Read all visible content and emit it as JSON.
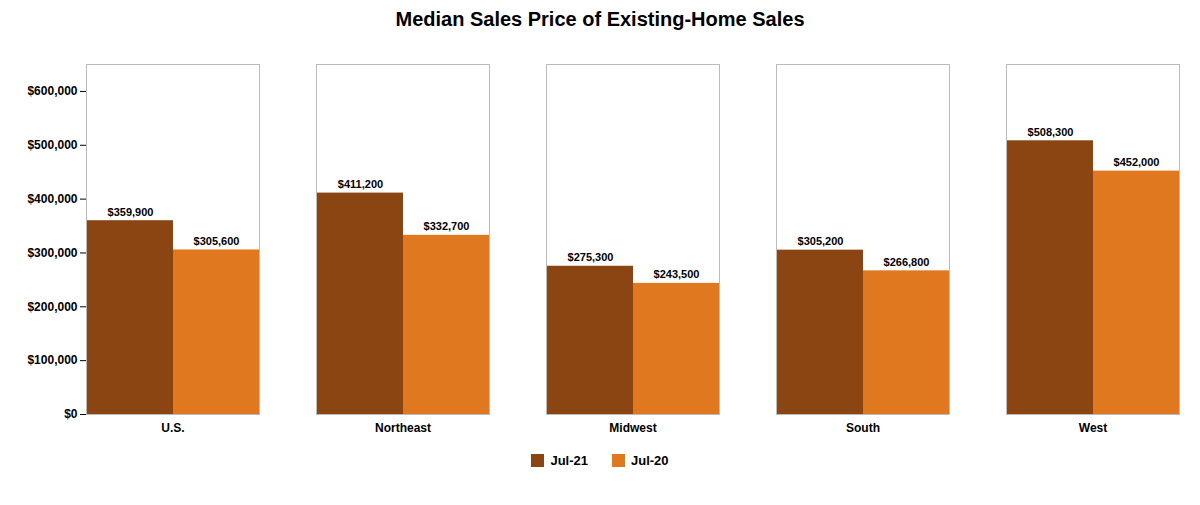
{
  "chart_data": {
    "type": "bar",
    "title": "Median Sales Price of Existing-Home Sales",
    "categories": [
      "U.S.",
      "Northeast",
      "Midwest",
      "South",
      "West"
    ],
    "series": [
      {
        "name": "Jul-21",
        "color": "#8B4513",
        "values": [
          359900,
          411200,
          275300,
          305200,
          508300
        ],
        "value_labels": [
          "$359,900",
          "$411,200",
          "$275,300",
          "$305,200",
          "$508,300"
        ]
      },
      {
        "name": "Jul-20",
        "color": "#E07820",
        "values": [
          305600,
          332700,
          243500,
          266800,
          452000
        ],
        "value_labels": [
          "$305,600",
          "$332,700",
          "$243,500",
          "$266,800",
          "$452,000"
        ]
      }
    ],
    "ylim": [
      0,
      650000
    ],
    "yticks": [
      {
        "value": 0,
        "label": "$0"
      },
      {
        "value": 100000,
        "label": "$100,000"
      },
      {
        "value": 200000,
        "label": "$200,000"
      },
      {
        "value": 300000,
        "label": "$300,000"
      },
      {
        "value": 400000,
        "label": "$400,000"
      },
      {
        "value": 500000,
        "label": "$500,000"
      },
      {
        "value": 600000,
        "label": "$600,000"
      }
    ],
    "grid": false,
    "legend": "bottom",
    "data_labels": true
  }
}
